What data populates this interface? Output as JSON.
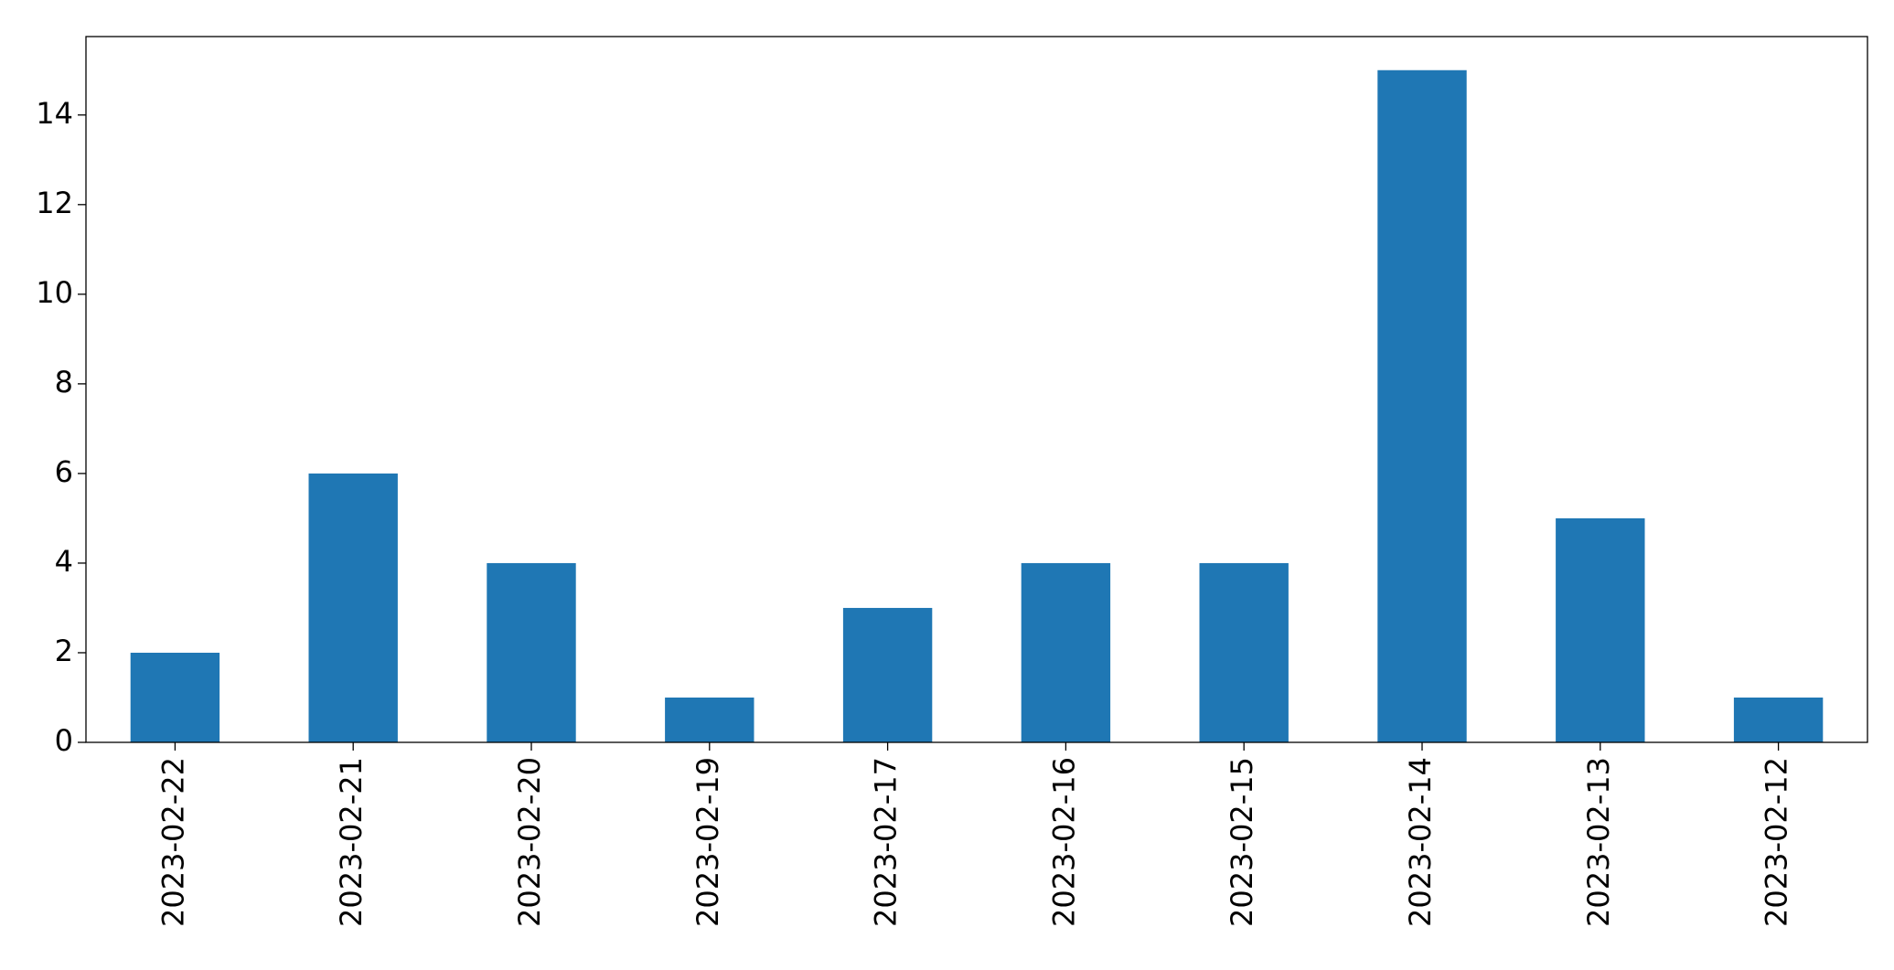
{
  "chart_data": {
    "type": "bar",
    "categories": [
      "2023-02-22",
      "2023-02-21",
      "2023-02-20",
      "2023-02-19",
      "2023-02-17",
      "2023-02-16",
      "2023-02-15",
      "2023-02-14",
      "2023-02-13",
      "2023-02-12"
    ],
    "values": [
      2,
      6,
      4,
      1,
      3,
      4,
      4,
      15,
      5,
      1
    ],
    "color": "#1f77b4",
    "ylim": [
      0,
      15.75
    ],
    "yticks": [
      0,
      2,
      4,
      6,
      8,
      10,
      12,
      14
    ],
    "grid": false
  }
}
